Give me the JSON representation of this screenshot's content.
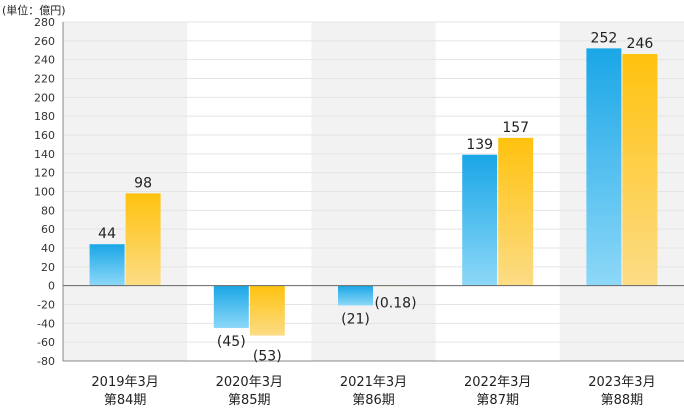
{
  "chart_data": {
    "type": "bar",
    "unit_label": "(単位：億円)",
    "categories": [
      [
        "2019年3月",
        "第84期"
      ],
      [
        "2020年3月",
        "第85期"
      ],
      [
        "2021年3月",
        "第86期"
      ],
      [
        "2022年3月",
        "第87期"
      ],
      [
        "2023年3月",
        "第88期"
      ]
    ],
    "series": [
      {
        "values": [
          44,
          -45,
          -21,
          139,
          252
        ],
        "labels": [
          "44",
          "(45)",
          "(21)",
          "139",
          "252"
        ],
        "color_top": "#1aa6e6",
        "color_bottom": "#8dd8f8"
      },
      {
        "values": [
          98,
          -53,
          -0.18,
          157,
          246
        ],
        "labels": [
          "98",
          "(53)",
          "(0.18)",
          "157",
          "246"
        ],
        "color_top": "#ffc20e",
        "color_bottom": "#fcdc86"
      }
    ],
    "ylim": [
      -80,
      280
    ],
    "yticks": [
      -80,
      -60,
      -40,
      -20,
      0,
      20,
      40,
      60,
      80,
      100,
      120,
      140,
      160,
      180,
      200,
      220,
      240,
      260,
      280
    ],
    "grid": true,
    "legend": "none"
  }
}
